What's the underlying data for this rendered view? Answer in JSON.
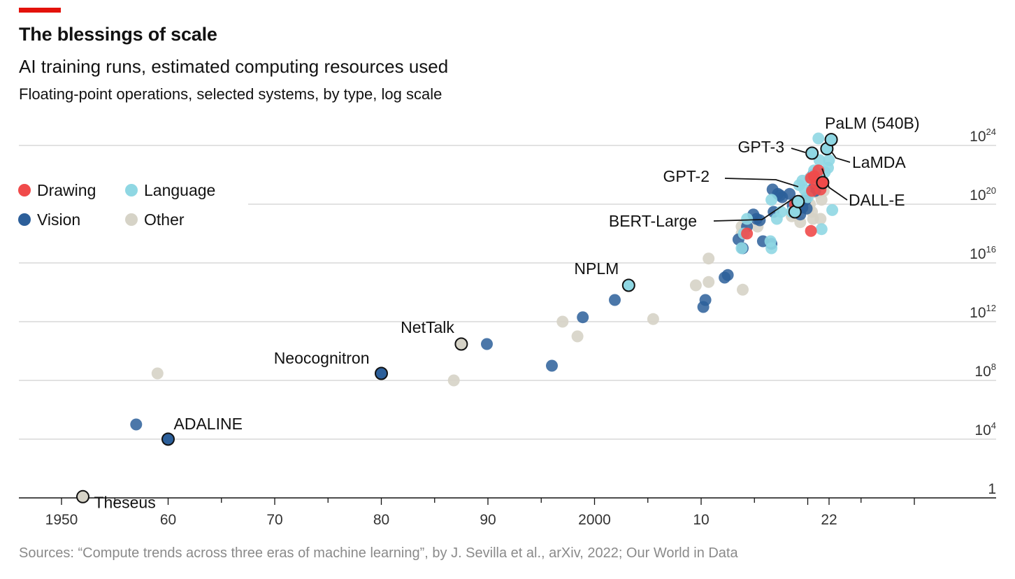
{
  "header": {
    "title": "The blessings of scale",
    "subtitle": "AI training runs, estimated computing resources used",
    "description": "Floating-point operations, selected systems, by type, log scale"
  },
  "footer": {
    "source": "Sources: “Compute trends across three eras of machine learning”, by J. Sevilla et al., arXiv, 2022; Our World in Data"
  },
  "colors": {
    "accent": "#e3120b",
    "Drawing": "#f04a4a",
    "Language": "#8fd7e3",
    "Vision": "#2c5f9a",
    "Other": "#d6d3c7",
    "gridline": "#d9d9d9",
    "axis": "#121212"
  },
  "chart_data": {
    "type": "scatter",
    "title": "The blessings of scale",
    "subtitle": "AI training runs, estimated computing resources used",
    "ylabel": "Floating-point operations, selected systems, by type, log scale",
    "y_scale": "log",
    "xlim": [
      1946,
      2031
    ],
    "ylim_exponent": [
      0,
      24
    ],
    "grid": true,
    "legend_position": "top-left",
    "legend": [
      "Drawing",
      "Language",
      "Vision",
      "Other"
    ],
    "x_ticks": [
      1950,
      1960,
      1970,
      1980,
      1990,
      2000,
      2010,
      2022
    ],
    "x_tick_labels": [
      "1950",
      "60",
      "70",
      "80",
      "90",
      "2000",
      "10",
      "22"
    ],
    "y_ticks": [
      {
        "exp": 24,
        "base": "10",
        "sup": "24"
      },
      {
        "exp": 20,
        "base": "10",
        "sup": "20"
      },
      {
        "exp": 16,
        "base": "10",
        "sup": "16"
      },
      {
        "exp": 12,
        "base": "10",
        "sup": "12"
      },
      {
        "exp": 8,
        "base": "10",
        "sup": "8"
      },
      {
        "exp": 4,
        "base": "10",
        "sup": "4"
      },
      {
        "exp": 0,
        "base": "1",
        "sup": ""
      }
    ],
    "annotations": [
      {
        "label": "Theseus",
        "x": 1952,
        "y": 1.2,
        "type": "Other"
      },
      {
        "label": "ADALINE",
        "x": 1960,
        "y": 10000.0,
        "type": "Vision"
      },
      {
        "label": "Neocognitron",
        "x": 1980,
        "y": 300000000.0,
        "type": "Vision"
      },
      {
        "label": "NetTalk",
        "x": 1987.5,
        "y": 30000000000.0,
        "type": "Other"
      },
      {
        "label": "NPLM",
        "x": 2003.2,
        "y": 300000000000000.0,
        "type": "Language"
      },
      {
        "label": "BERT-Large",
        "x": 2018.8,
        "y": 3e+19,
        "type": "Language"
      },
      {
        "label": "GPT-2",
        "x": 2019.1,
        "y": 1.5e+20,
        "type": "Language"
      },
      {
        "label": "GPT-3",
        "x": 2020.4,
        "y": 3e+23,
        "type": "Language"
      },
      {
        "label": "DALL-E",
        "x": 2021.4,
        "y": 3e+21,
        "type": "Drawing"
      },
      {
        "label": "LaMDA",
        "x": 2021.8,
        "y": 6e+23,
        "type": "Language"
      },
      {
        "label": "PaLM (540B)",
        "x": 2022.2,
        "y": 2.5e+24,
        "type": "Language"
      }
    ],
    "series": [
      {
        "name": "Drawing",
        "points": [
          [
            2014.3,
            1e+18
          ],
          [
            2018.8,
            1e+20
          ],
          [
            2020.3,
            6e+21
          ],
          [
            2020.6,
            8e+21
          ],
          [
            2021.0,
            2e+22
          ],
          [
            2020.4,
            8e+20
          ],
          [
            2020.8,
            3e+21
          ],
          [
            2021.2,
            1e+21
          ],
          [
            2020.3,
            1.5e+18
          ]
        ]
      },
      {
        "name": "Language",
        "points": [
          [
            2013.8,
            1e+17
          ],
          [
            2014.0,
            1e+18
          ],
          [
            2014.3,
            1e+19
          ],
          [
            2016.5,
            3e+17
          ],
          [
            2016.6,
            1e+17
          ],
          [
            2016.6,
            2e+20
          ],
          [
            2017.5,
            3e+19
          ],
          [
            2018.5,
            3e+19
          ],
          [
            2017.1,
            1e+19
          ],
          [
            2019.2,
            2e+21
          ],
          [
            2019.5,
            4e+21
          ],
          [
            2020.2,
            6e+21
          ],
          [
            2020.6,
            2e+22
          ],
          [
            2021.1,
            1e+23
          ],
          [
            2021.6,
            1.5e+22
          ],
          [
            2021.9,
            3e+22
          ],
          [
            2022.0,
            1e+23
          ],
          [
            2021.3,
            2e+18
          ],
          [
            2022.3,
            4e+19
          ],
          [
            2019.7,
            1e+21
          ],
          [
            2020.0,
            3e+20
          ],
          [
            2021.0,
            3e+24
          ]
        ]
      },
      {
        "name": "Vision",
        "points": [
          [
            1957,
            100000.0
          ],
          [
            1989.9,
            30000000000.0
          ],
          [
            1996,
            1000000000.0
          ],
          [
            1998.9,
            2000000000000.0
          ],
          [
            2001.9,
            30000000000000.0
          ],
          [
            2010.2,
            10000000000000.0
          ],
          [
            2010.4,
            30000000000000.0
          ],
          [
            2012.2,
            1000000000000000.0
          ],
          [
            2012.5,
            1500000000000000.0
          ],
          [
            2013.5,
            4e+17
          ],
          [
            2013.9,
            1e+17
          ],
          [
            2014.3,
            3e+18
          ],
          [
            2014.9,
            2e+19
          ],
          [
            2015.2,
            1e+19
          ],
          [
            2015.5,
            8e+18
          ],
          [
            2015.8,
            3e+17
          ],
          [
            2016.6,
            2e+17
          ],
          [
            2016.8,
            3e+19
          ],
          [
            2016.7,
            1e+21
          ],
          [
            2017.4,
            4e+20
          ],
          [
            2017.6,
            3e+20
          ],
          [
            2018.3,
            5e+20
          ],
          [
            2018.6,
            8e+19
          ],
          [
            2018.9,
            1e+20
          ],
          [
            2019.3,
            2e+19
          ],
          [
            2019.5,
            6e+19
          ],
          [
            2019.8,
            2e+20
          ],
          [
            2019.9,
            5e+19
          ],
          [
            2020.4,
            1e+21
          ],
          [
            2021.3,
            3e+21
          ],
          [
            2020.5,
            1e+22
          ],
          [
            2020.7,
            8e+20
          ],
          [
            2017.2,
            5e+20
          ]
        ]
      },
      {
        "name": "Other",
        "points": [
          [
            1959,
            300000000.0
          ],
          [
            1986.8,
            100000000.0
          ],
          [
            1997,
            1000000000000.0
          ],
          [
            1998.4,
            100000000000.0
          ],
          [
            2005.5,
            1500000000000.0
          ],
          [
            2009.5,
            300000000000000.0
          ],
          [
            2010.7,
            500000000000000.0
          ],
          [
            2010.7,
            2e+16
          ],
          [
            2013.8,
            1e+18
          ],
          [
            2013.8,
            3e+18
          ],
          [
            2013.9,
            150000000000000.0
          ],
          [
            2015.3,
            3e+18
          ],
          [
            2018.5,
            1.5e+19
          ],
          [
            2018.8,
            1.5e+20
          ],
          [
            2019.3,
            6e+18
          ],
          [
            2019.5,
            2e+20
          ],
          [
            2019.9,
            3e+20
          ],
          [
            2020.1,
            5e+19
          ],
          [
            2020.2,
            1e+20
          ],
          [
            2020.4,
            3e+19
          ],
          [
            2020.5,
            1e+19
          ],
          [
            2020.9,
            6e+20
          ],
          [
            2021.1,
            3e+21
          ],
          [
            2021.3,
            2e+20
          ],
          [
            2021.5,
            8e+20
          ],
          [
            2021.2,
            1e+19
          ]
        ]
      }
    ]
  }
}
